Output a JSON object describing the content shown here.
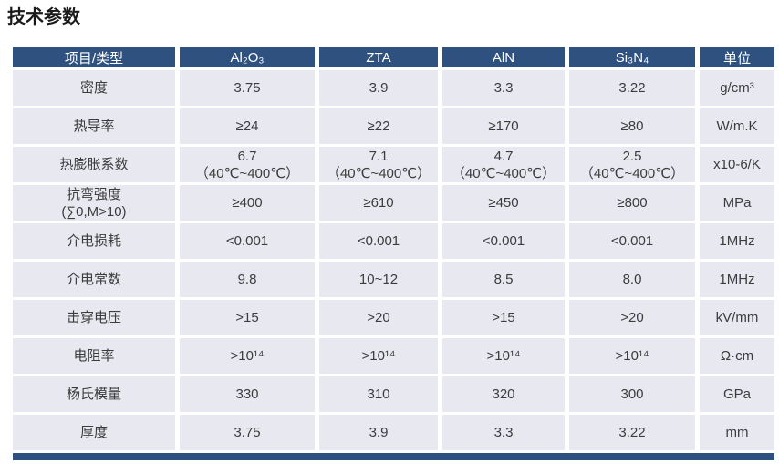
{
  "page": {
    "title": "技术参数"
  },
  "colors": {
    "header_bg": "#2f5180",
    "row_bg": "#e8e8f1",
    "header_text": "#ffffff",
    "cell_text": "#3c3c3c",
    "title_text": "#1a1a1a"
  },
  "table": {
    "headers": [
      "项目/类型",
      "Al₂O₃",
      "ZTA",
      "AlN",
      "Si₃N₄",
      "单位"
    ],
    "rows": [
      {
        "label": "密度",
        "values": [
          "3.75",
          "3.9",
          "3.3",
          "3.22"
        ],
        "unit": "g/cm³"
      },
      {
        "label": "热导率",
        "values": [
          "≥24",
          "≥22",
          "≥170",
          "≥80"
        ],
        "unit": "W/m.K"
      },
      {
        "label": "热膨胀系数",
        "values": [
          "6.7\n（40℃~400℃）",
          "7.1\n（40℃~400℃）",
          "4.7\n（40℃~400℃）",
          "2.5\n（40℃~400℃）"
        ],
        "unit": "x10-6/K"
      },
      {
        "label": "抗弯强度\n(∑0,M>10)",
        "values": [
          "≥400",
          "≥610",
          "≥450",
          "≥800"
        ],
        "unit": "MPa"
      },
      {
        "label": "介电损耗",
        "values": [
          "<0.001",
          "<0.001",
          "<0.001",
          "<0.001"
        ],
        "unit": "1MHz"
      },
      {
        "label": "介电常数",
        "values": [
          "9.8",
          "10~12",
          "8.5",
          "8.0"
        ],
        "unit": "1MHz"
      },
      {
        "label": "击穿电压",
        "values": [
          ">15",
          ">20",
          ">15",
          ">20"
        ],
        "unit": "kV/mm"
      },
      {
        "label": "电阻率",
        "values": [
          ">10¹⁴",
          ">10¹⁴",
          ">10¹⁴",
          ">10¹⁴"
        ],
        "unit": "Ω·cm"
      },
      {
        "label": "杨氏模量",
        "values": [
          "330",
          "310",
          "320",
          "300"
        ],
        "unit": "GPa"
      },
      {
        "label": "厚度",
        "values": [
          "3.75",
          "3.9",
          "3.3",
          "3.22"
        ],
        "unit": "mm"
      }
    ]
  }
}
